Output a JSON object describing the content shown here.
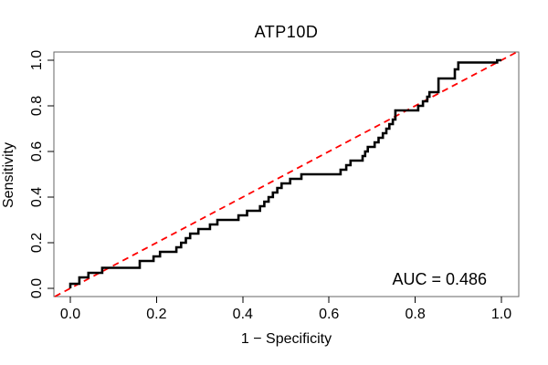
{
  "figure": {
    "title": "ATP10D",
    "x_axis": {
      "label": "1 − Specificity",
      "tick_labels": [
        "0.0",
        "0.2",
        "0.4",
        "0.6",
        "0.8",
        "1.0"
      ],
      "tick_values": [
        0,
        0.2,
        0.4,
        0.6,
        0.8,
        1.0
      ]
    },
    "y_axis": {
      "label": "Sensitivity",
      "tick_labels": [
        "0.0",
        "0.2",
        "0.4",
        "0.6",
        "0.8",
        "1.0"
      ],
      "tick_values": [
        0,
        0.2,
        0.4,
        0.6,
        0.8,
        1.0
      ]
    },
    "annotation": "AUC = 0.486"
  },
  "chart_data": {
    "type": "line",
    "subtype": "roc-step-curve",
    "title": "ATP10D",
    "xlabel": "1 − Specificity",
    "ylabel": "Sensitivity",
    "xlim": [
      0,
      1
    ],
    "ylim": [
      0,
      1
    ],
    "grid": false,
    "legend": false,
    "auc": 0.486,
    "annotation": "AUC = 0.486",
    "colors": {
      "curve": "#000000",
      "diagonal": "#ff0000",
      "axis": "#000000"
    },
    "series": [
      {
        "name": "ROC curve",
        "draw": "step",
        "color": "#000000",
        "line_style": "solid",
        "points": [
          [
            0,
            0
          ],
          [
            0,
            0.02
          ],
          [
            0.021,
            0.02
          ],
          [
            0.021,
            0.048
          ],
          [
            0.042,
            0.048
          ],
          [
            0.042,
            0.068
          ],
          [
            0.074,
            0.068
          ],
          [
            0.074,
            0.09
          ],
          [
            0.161,
            0.09
          ],
          [
            0.161,
            0.12
          ],
          [
            0.193,
            0.12
          ],
          [
            0.193,
            0.14
          ],
          [
            0.208,
            0.14
          ],
          [
            0.208,
            0.16
          ],
          [
            0.246,
            0.16
          ],
          [
            0.246,
            0.18
          ],
          [
            0.257,
            0.18
          ],
          [
            0.257,
            0.2
          ],
          [
            0.268,
            0.2
          ],
          [
            0.268,
            0.22
          ],
          [
            0.278,
            0.22
          ],
          [
            0.278,
            0.24
          ],
          [
            0.297,
            0.24
          ],
          [
            0.297,
            0.26
          ],
          [
            0.324,
            0.26
          ],
          [
            0.324,
            0.28
          ],
          [
            0.341,
            0.28
          ],
          [
            0.341,
            0.3
          ],
          [
            0.39,
            0.3
          ],
          [
            0.39,
            0.32
          ],
          [
            0.41,
            0.32
          ],
          [
            0.41,
            0.34
          ],
          [
            0.44,
            0.34
          ],
          [
            0.44,
            0.36
          ],
          [
            0.45,
            0.36
          ],
          [
            0.45,
            0.38
          ],
          [
            0.46,
            0.38
          ],
          [
            0.46,
            0.4
          ],
          [
            0.47,
            0.4
          ],
          [
            0.47,
            0.42
          ],
          [
            0.48,
            0.42
          ],
          [
            0.48,
            0.44
          ],
          [
            0.49,
            0.44
          ],
          [
            0.49,
            0.46
          ],
          [
            0.51,
            0.46
          ],
          [
            0.51,
            0.48
          ],
          [
            0.536,
            0.48
          ],
          [
            0.536,
            0.5
          ],
          [
            0.627,
            0.5
          ],
          [
            0.627,
            0.52
          ],
          [
            0.64,
            0.52
          ],
          [
            0.64,
            0.54
          ],
          [
            0.65,
            0.54
          ],
          [
            0.65,
            0.56
          ],
          [
            0.678,
            0.56
          ],
          [
            0.678,
            0.58
          ],
          [
            0.684,
            0.58
          ],
          [
            0.684,
            0.6
          ],
          [
            0.69,
            0.6
          ],
          [
            0.69,
            0.62
          ],
          [
            0.706,
            0.62
          ],
          [
            0.706,
            0.64
          ],
          [
            0.715,
            0.64
          ],
          [
            0.715,
            0.66
          ],
          [
            0.725,
            0.66
          ],
          [
            0.725,
            0.68
          ],
          [
            0.733,
            0.68
          ],
          [
            0.733,
            0.7
          ],
          [
            0.74,
            0.7
          ],
          [
            0.74,
            0.72
          ],
          [
            0.748,
            0.72
          ],
          [
            0.748,
            0.74
          ],
          [
            0.754,
            0.74
          ],
          [
            0.754,
            0.78
          ],
          [
            0.807,
            0.78
          ],
          [
            0.807,
            0.8
          ],
          [
            0.818,
            0.8
          ],
          [
            0.818,
            0.82
          ],
          [
            0.828,
            0.82
          ],
          [
            0.828,
            0.84
          ],
          [
            0.833,
            0.84
          ],
          [
            0.833,
            0.86
          ],
          [
            0.854,
            0.86
          ],
          [
            0.854,
            0.92
          ],
          [
            0.892,
            0.92
          ],
          [
            0.892,
            0.96
          ],
          [
            0.9,
            0.96
          ],
          [
            0.9,
            0.99
          ],
          [
            0.99,
            0.99
          ],
          [
            0.99,
            1
          ],
          [
            1,
            1
          ]
        ]
      },
      {
        "name": "chance diagonal",
        "draw": "line",
        "color": "#ff0000",
        "line_style": "dashed",
        "points": [
          [
            0,
            0
          ],
          [
            1,
            1
          ]
        ]
      }
    ]
  }
}
